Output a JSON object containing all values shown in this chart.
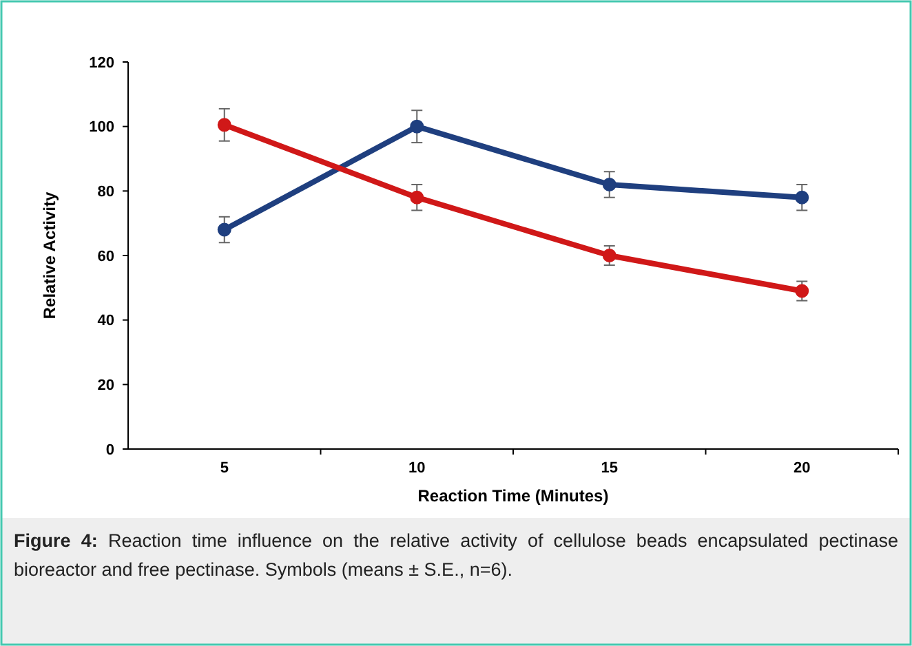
{
  "chart_data": {
    "type": "line",
    "categories": [
      "5",
      "10",
      "15",
      "20"
    ],
    "xlabel": "Reaction Time (Minutes)",
    "ylabel": "Relative Activity",
    "ylim": [
      0,
      120
    ],
    "yticks": [
      0,
      20,
      40,
      60,
      80,
      100,
      120
    ],
    "marker": "circle",
    "grid": false,
    "series": [
      {
        "color": "#1f3f7f",
        "values": [
          68,
          100,
          82,
          78
        ],
        "errors": [
          4,
          5,
          4,
          4
        ]
      },
      {
        "color": "#d01818",
        "values": [
          100.5,
          78,
          60,
          49
        ],
        "errors": [
          5,
          4,
          3,
          3
        ]
      }
    ],
    "annotations": [
      "Figure 4: Reaction time influence on the relative activity of cellulose beads encapsulated pectinase bioreactor and free pectinase. Symbols (means ± S.E., n=6)."
    ]
  }
}
